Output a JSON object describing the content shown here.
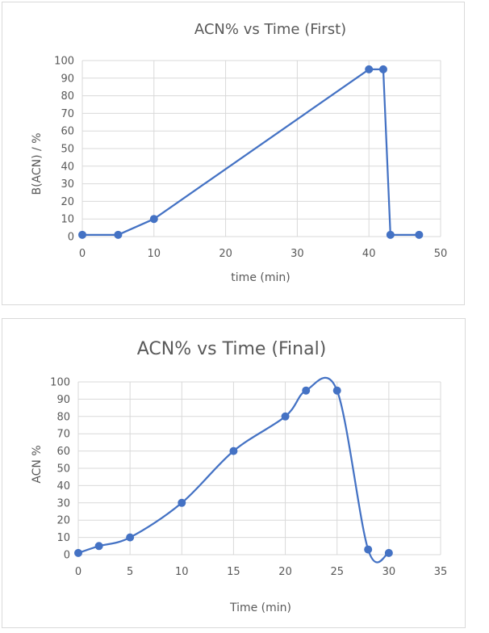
{
  "chart_data": [
    {
      "type": "line",
      "title": "ACN% vs Time (First)",
      "xlabel": "time (min)",
      "ylabel": "B(ACN) / %",
      "xlim": [
        0,
        50
      ],
      "ylim": [
        0,
        100
      ],
      "x_ticks": [
        0,
        10,
        20,
        30,
        40,
        50
      ],
      "y_ticks": [
        0,
        10,
        20,
        30,
        40,
        50,
        60,
        70,
        80,
        90,
        100
      ],
      "grid": true,
      "smooth": false,
      "color": "#4472c4",
      "series": [
        {
          "x": [
            0,
            5,
            10,
            40,
            42,
            43,
            47
          ],
          "y": [
            1,
            1,
            10,
            95,
            95,
            1,
            1
          ]
        }
      ]
    },
    {
      "type": "line",
      "title": "ACN% vs Time (Final)",
      "xlabel": "Time (min)",
      "ylabel": "ACN %",
      "xlim": [
        0,
        35
      ],
      "ylim": [
        0,
        100
      ],
      "x_ticks": [
        0,
        5,
        10,
        15,
        20,
        25,
        30,
        35
      ],
      "y_ticks": [
        0,
        10,
        20,
        30,
        40,
        50,
        60,
        70,
        80,
        90,
        100
      ],
      "grid": true,
      "smooth": true,
      "color": "#4472c4",
      "series": [
        {
          "x": [
            0,
            2,
            5,
            10,
            15,
            20,
            22,
            25,
            28,
            30
          ],
          "y": [
            1,
            5,
            10,
            30,
            60,
            80,
            95,
            95,
            3,
            1
          ]
        }
      ]
    }
  ]
}
